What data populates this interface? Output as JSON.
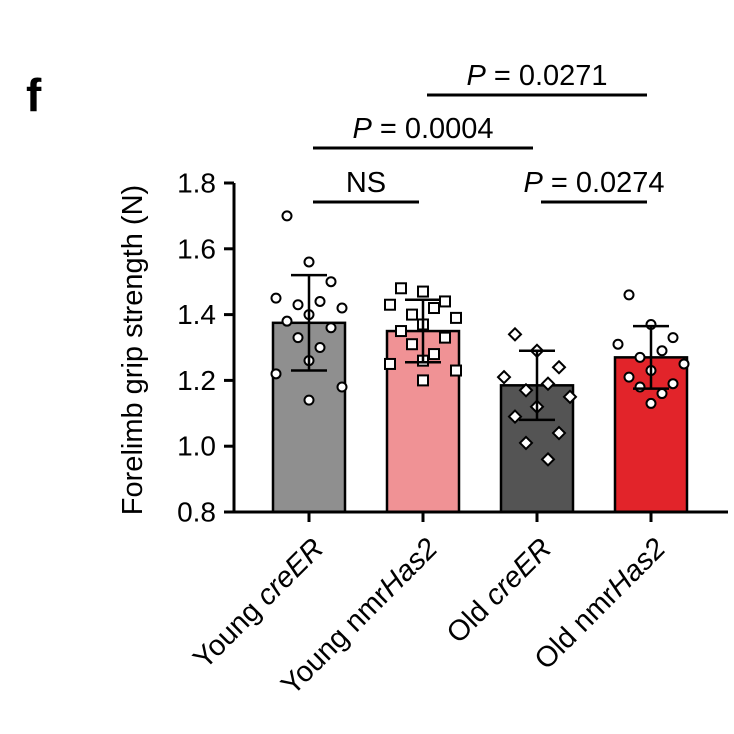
{
  "panel_label": "f",
  "chart_data": {
    "type": "bar",
    "ylabel": "Forelimb grip strength (N)",
    "xlabel": "",
    "ylim": [
      0.8,
      1.8
    ],
    "yticks": [
      0.8,
      1.0,
      1.2,
      1.4,
      1.6,
      1.8
    ],
    "ytick_labels": [
      "0.8",
      "1.0",
      "1.2",
      "1.4",
      "1.6",
      "1.8"
    ],
    "categories": [
      {
        "prefix": "Young ",
        "italic": "creER",
        "suffix": ""
      },
      {
        "prefix": "Young nmr",
        "italic": "Has2",
        "suffix": ""
      },
      {
        "prefix": "Old ",
        "italic": "creER",
        "suffix": ""
      },
      {
        "prefix": "Old nmr",
        "italic": "Has2",
        "suffix": ""
      }
    ],
    "values": [
      1.375,
      1.35,
      1.185,
      1.27
    ],
    "sd": [
      0.145,
      0.095,
      0.105,
      0.095
    ],
    "bar_colors": [
      "#8f8f8f",
      "#f09295",
      "#545454",
      "#e2242a"
    ],
    "markers": [
      "circle",
      "square",
      "diamond",
      "circle"
    ],
    "points": [
      [
        1.7,
        1.56,
        1.5,
        1.45,
        1.44,
        1.43,
        1.42,
        1.4,
        1.38,
        1.36,
        1.33,
        1.3,
        1.26,
        1.22,
        1.18,
        1.14
      ],
      [
        1.48,
        1.47,
        1.44,
        1.43,
        1.42,
        1.4,
        1.39,
        1.37,
        1.35,
        1.33,
        1.31,
        1.28,
        1.26,
        1.25,
        1.23,
        1.2
      ],
      [
        1.34,
        1.29,
        1.24,
        1.21,
        1.19,
        1.17,
        1.15,
        1.12,
        1.09,
        1.04,
        1.01,
        0.96
      ],
      [
        1.46,
        1.37,
        1.33,
        1.31,
        1.29,
        1.27,
        1.25,
        1.23,
        1.21,
        1.19,
        1.18,
        1.16,
        1.13
      ]
    ],
    "comparisons": [
      {
        "from": 0,
        "to": 1,
        "label": "NS",
        "italic_p": false
      },
      {
        "from": 2,
        "to": 3,
        "label": " = 0.0274",
        "italic_p": true
      },
      {
        "from": 0,
        "to": 2,
        "label": " = 0.0004",
        "italic_p": true
      },
      {
        "from": 1,
        "to": 3,
        "label": " = 0.0271",
        "italic_p": true
      }
    ],
    "p_symbol": "P"
  }
}
